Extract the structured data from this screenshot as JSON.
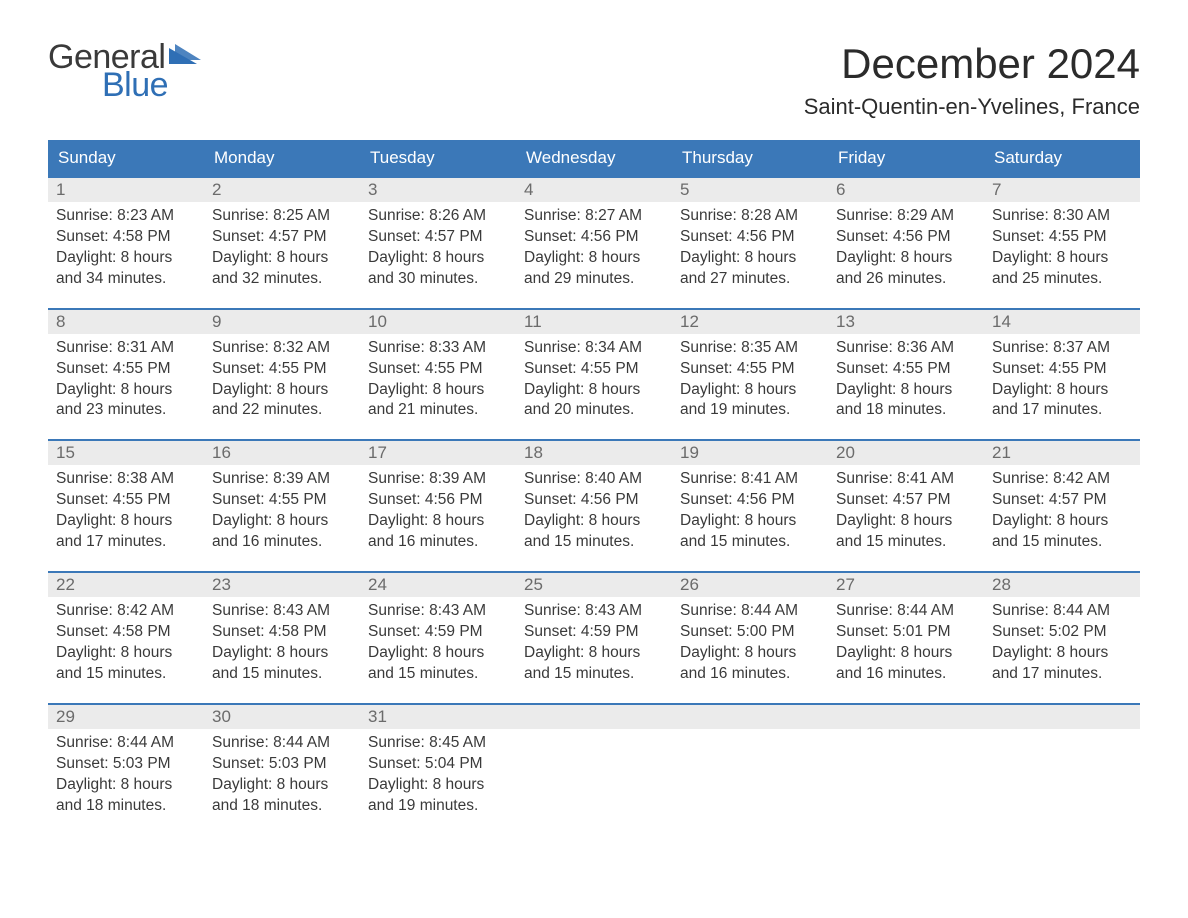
{
  "brand": {
    "word1": "General",
    "word2": "Blue",
    "logo_color": "#2f6fb5",
    "text_color": "#3a3a3a"
  },
  "title": "December 2024",
  "location": "Saint-Quentin-en-Yvelines, France",
  "colors": {
    "header_bg": "#3b78b8",
    "header_text": "#ffffff",
    "week_border": "#3b78b8",
    "daynum_bg": "#ebebeb",
    "daynum_text": "#6b6b6b",
    "body_text": "#3a3a3a",
    "page_bg": "#ffffff"
  },
  "typography": {
    "title_fontsize": 42,
    "location_fontsize": 22,
    "dow_fontsize": 17,
    "daynum_fontsize": 17,
    "cell_fontsize": 15.5
  },
  "days_of_week": [
    "Sunday",
    "Monday",
    "Tuesday",
    "Wednesday",
    "Thursday",
    "Friday",
    "Saturday"
  ],
  "weeks": [
    [
      {
        "n": "1",
        "sunrise": "Sunrise: 8:23 AM",
        "sunset": "Sunset: 4:58 PM",
        "d1": "Daylight: 8 hours",
        "d2": "and 34 minutes."
      },
      {
        "n": "2",
        "sunrise": "Sunrise: 8:25 AM",
        "sunset": "Sunset: 4:57 PM",
        "d1": "Daylight: 8 hours",
        "d2": "and 32 minutes."
      },
      {
        "n": "3",
        "sunrise": "Sunrise: 8:26 AM",
        "sunset": "Sunset: 4:57 PM",
        "d1": "Daylight: 8 hours",
        "d2": "and 30 minutes."
      },
      {
        "n": "4",
        "sunrise": "Sunrise: 8:27 AM",
        "sunset": "Sunset: 4:56 PM",
        "d1": "Daylight: 8 hours",
        "d2": "and 29 minutes."
      },
      {
        "n": "5",
        "sunrise": "Sunrise: 8:28 AM",
        "sunset": "Sunset: 4:56 PM",
        "d1": "Daylight: 8 hours",
        "d2": "and 27 minutes."
      },
      {
        "n": "6",
        "sunrise": "Sunrise: 8:29 AM",
        "sunset": "Sunset: 4:56 PM",
        "d1": "Daylight: 8 hours",
        "d2": "and 26 minutes."
      },
      {
        "n": "7",
        "sunrise": "Sunrise: 8:30 AM",
        "sunset": "Sunset: 4:55 PM",
        "d1": "Daylight: 8 hours",
        "d2": "and 25 minutes."
      }
    ],
    [
      {
        "n": "8",
        "sunrise": "Sunrise: 8:31 AM",
        "sunset": "Sunset: 4:55 PM",
        "d1": "Daylight: 8 hours",
        "d2": "and 23 minutes."
      },
      {
        "n": "9",
        "sunrise": "Sunrise: 8:32 AM",
        "sunset": "Sunset: 4:55 PM",
        "d1": "Daylight: 8 hours",
        "d2": "and 22 minutes."
      },
      {
        "n": "10",
        "sunrise": "Sunrise: 8:33 AM",
        "sunset": "Sunset: 4:55 PM",
        "d1": "Daylight: 8 hours",
        "d2": "and 21 minutes."
      },
      {
        "n": "11",
        "sunrise": "Sunrise: 8:34 AM",
        "sunset": "Sunset: 4:55 PM",
        "d1": "Daylight: 8 hours",
        "d2": "and 20 minutes."
      },
      {
        "n": "12",
        "sunrise": "Sunrise: 8:35 AM",
        "sunset": "Sunset: 4:55 PM",
        "d1": "Daylight: 8 hours",
        "d2": "and 19 minutes."
      },
      {
        "n": "13",
        "sunrise": "Sunrise: 8:36 AM",
        "sunset": "Sunset: 4:55 PM",
        "d1": "Daylight: 8 hours",
        "d2": "and 18 minutes."
      },
      {
        "n": "14",
        "sunrise": "Sunrise: 8:37 AM",
        "sunset": "Sunset: 4:55 PM",
        "d1": "Daylight: 8 hours",
        "d2": "and 17 minutes."
      }
    ],
    [
      {
        "n": "15",
        "sunrise": "Sunrise: 8:38 AM",
        "sunset": "Sunset: 4:55 PM",
        "d1": "Daylight: 8 hours",
        "d2": "and 17 minutes."
      },
      {
        "n": "16",
        "sunrise": "Sunrise: 8:39 AM",
        "sunset": "Sunset: 4:55 PM",
        "d1": "Daylight: 8 hours",
        "d2": "and 16 minutes."
      },
      {
        "n": "17",
        "sunrise": "Sunrise: 8:39 AM",
        "sunset": "Sunset: 4:56 PM",
        "d1": "Daylight: 8 hours",
        "d2": "and 16 minutes."
      },
      {
        "n": "18",
        "sunrise": "Sunrise: 8:40 AM",
        "sunset": "Sunset: 4:56 PM",
        "d1": "Daylight: 8 hours",
        "d2": "and 15 minutes."
      },
      {
        "n": "19",
        "sunrise": "Sunrise: 8:41 AM",
        "sunset": "Sunset: 4:56 PM",
        "d1": "Daylight: 8 hours",
        "d2": "and 15 minutes."
      },
      {
        "n": "20",
        "sunrise": "Sunrise: 8:41 AM",
        "sunset": "Sunset: 4:57 PM",
        "d1": "Daylight: 8 hours",
        "d2": "and 15 minutes."
      },
      {
        "n": "21",
        "sunrise": "Sunrise: 8:42 AM",
        "sunset": "Sunset: 4:57 PM",
        "d1": "Daylight: 8 hours",
        "d2": "and 15 minutes."
      }
    ],
    [
      {
        "n": "22",
        "sunrise": "Sunrise: 8:42 AM",
        "sunset": "Sunset: 4:58 PM",
        "d1": "Daylight: 8 hours",
        "d2": "and 15 minutes."
      },
      {
        "n": "23",
        "sunrise": "Sunrise: 8:43 AM",
        "sunset": "Sunset: 4:58 PM",
        "d1": "Daylight: 8 hours",
        "d2": "and 15 minutes."
      },
      {
        "n": "24",
        "sunrise": "Sunrise: 8:43 AM",
        "sunset": "Sunset: 4:59 PM",
        "d1": "Daylight: 8 hours",
        "d2": "and 15 minutes."
      },
      {
        "n": "25",
        "sunrise": "Sunrise: 8:43 AM",
        "sunset": "Sunset: 4:59 PM",
        "d1": "Daylight: 8 hours",
        "d2": "and 15 minutes."
      },
      {
        "n": "26",
        "sunrise": "Sunrise: 8:44 AM",
        "sunset": "Sunset: 5:00 PM",
        "d1": "Daylight: 8 hours",
        "d2": "and 16 minutes."
      },
      {
        "n": "27",
        "sunrise": "Sunrise: 8:44 AM",
        "sunset": "Sunset: 5:01 PM",
        "d1": "Daylight: 8 hours",
        "d2": "and 16 minutes."
      },
      {
        "n": "28",
        "sunrise": "Sunrise: 8:44 AM",
        "sunset": "Sunset: 5:02 PM",
        "d1": "Daylight: 8 hours",
        "d2": "and 17 minutes."
      }
    ],
    [
      {
        "n": "29",
        "sunrise": "Sunrise: 8:44 AM",
        "sunset": "Sunset: 5:03 PM",
        "d1": "Daylight: 8 hours",
        "d2": "and 18 minutes."
      },
      {
        "n": "30",
        "sunrise": "Sunrise: 8:44 AM",
        "sunset": "Sunset: 5:03 PM",
        "d1": "Daylight: 8 hours",
        "d2": "and 18 minutes."
      },
      {
        "n": "31",
        "sunrise": "Sunrise: 8:45 AM",
        "sunset": "Sunset: 5:04 PM",
        "d1": "Daylight: 8 hours",
        "d2": "and 19 minutes."
      },
      {
        "n": "",
        "sunrise": "",
        "sunset": "",
        "d1": "",
        "d2": ""
      },
      {
        "n": "",
        "sunrise": "",
        "sunset": "",
        "d1": "",
        "d2": ""
      },
      {
        "n": "",
        "sunrise": "",
        "sunset": "",
        "d1": "",
        "d2": ""
      },
      {
        "n": "",
        "sunrise": "",
        "sunset": "",
        "d1": "",
        "d2": ""
      }
    ]
  ]
}
